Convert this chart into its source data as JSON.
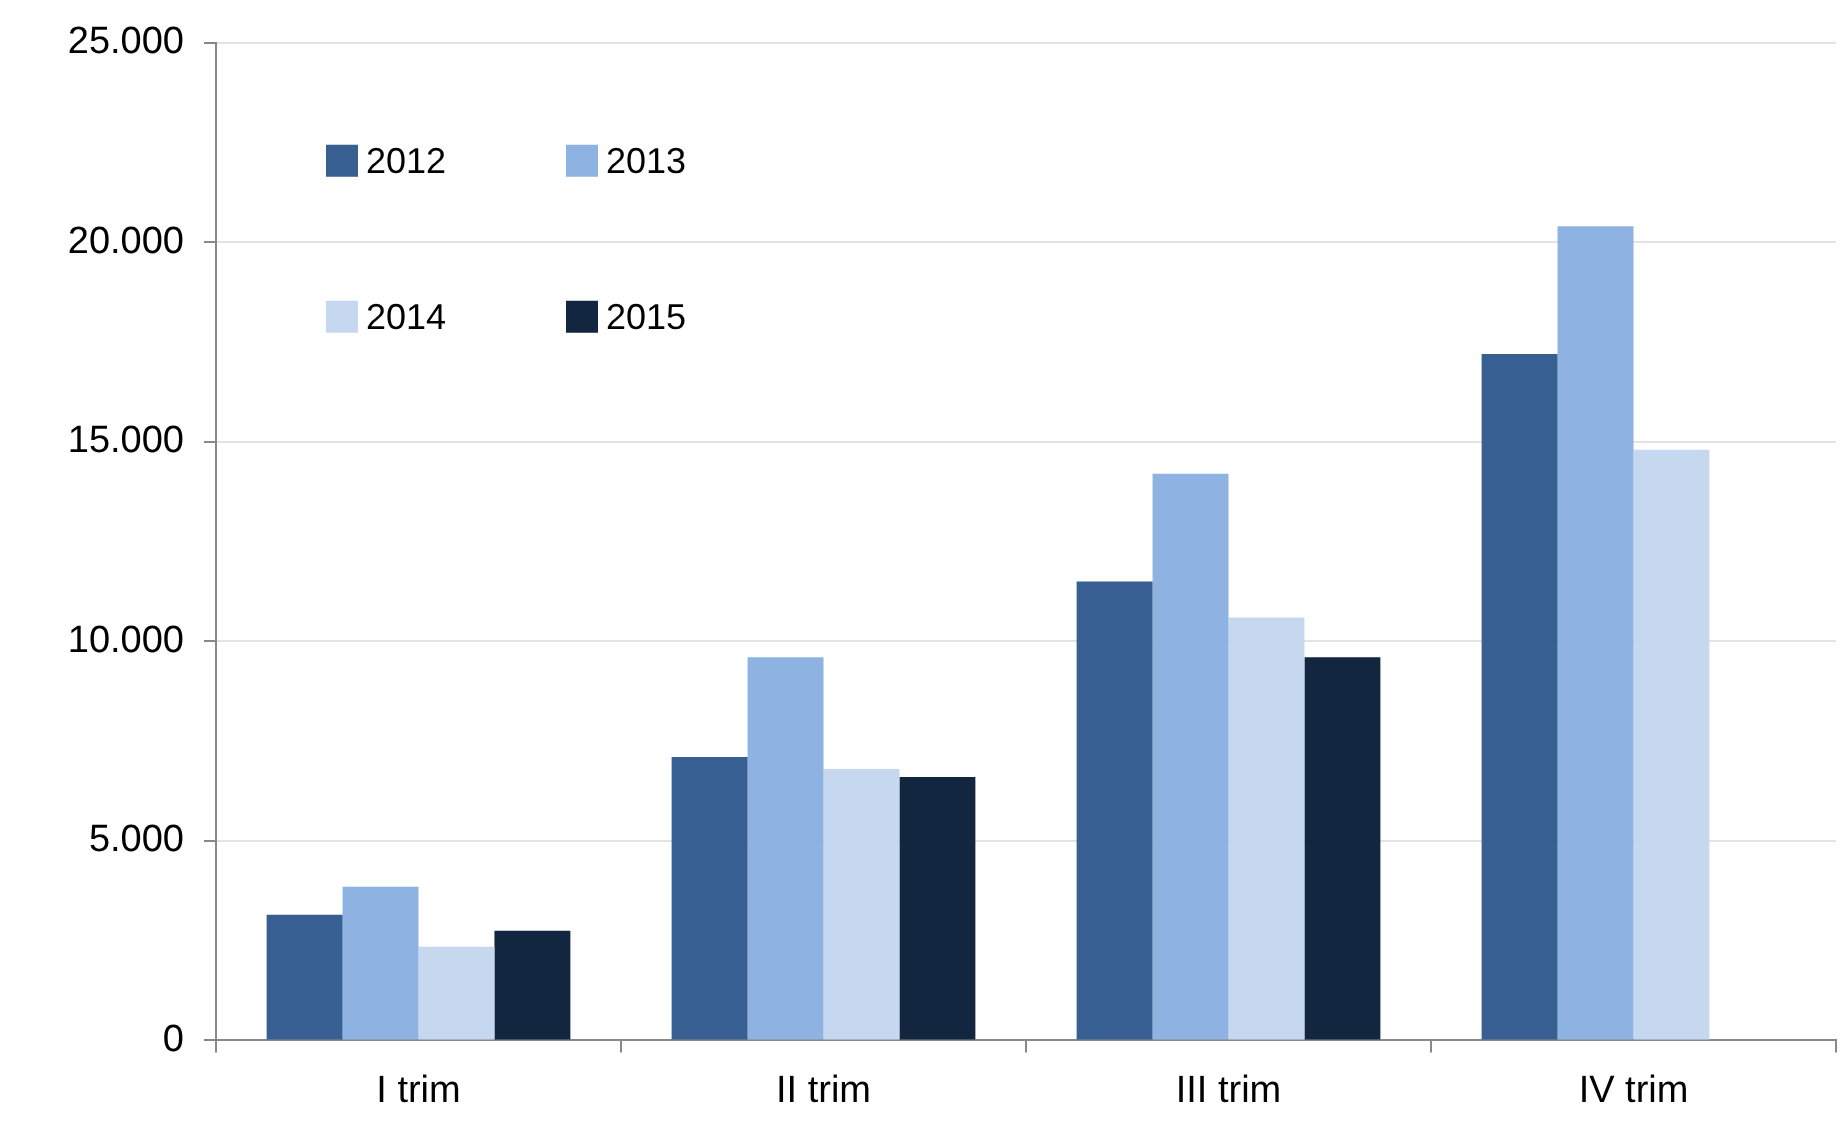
{
  "chart_data": {
    "type": "bar",
    "categories": [
      "I trim",
      "II trim",
      "III trim",
      "IV trim"
    ],
    "series": [
      {
        "name": "2012",
        "color": "#375f91",
        "values": [
          3150,
          7100,
          11500,
          17200
        ]
      },
      {
        "name": "2013",
        "color": "#8eb3e2",
        "values": [
          3850,
          9600,
          14200,
          20400
        ]
      },
      {
        "name": "2014",
        "color": "#c6d8f0",
        "values": [
          2350,
          6800,
          10600,
          14800
        ]
      },
      {
        "name": "2015",
        "color": "#12263f",
        "values": [
          2750,
          6600,
          9600,
          null
        ]
      }
    ],
    "ylim": [
      0,
      25000
    ],
    "yticks": [
      {
        "value": 0,
        "label": "0"
      },
      {
        "value": 5000,
        "label": "5.000"
      },
      {
        "value": 10000,
        "label": "10.000"
      },
      {
        "value": 15000,
        "label": "15.000"
      },
      {
        "value": 20000,
        "label": "20.000"
      },
      {
        "value": 25000,
        "label": "25.000"
      }
    ],
    "grid": "y",
    "legend": "top left"
  }
}
